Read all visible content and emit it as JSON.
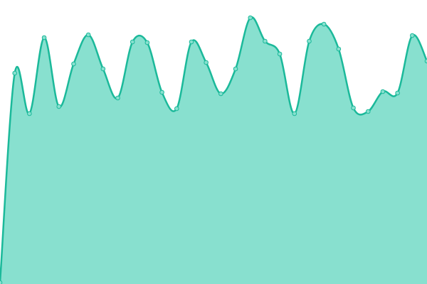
{
  "chart_data": {
    "type": "area",
    "x": [
      0,
      1,
      2,
      3,
      4,
      5,
      6,
      7,
      8,
      9,
      10,
      11,
      12,
      13,
      14,
      15,
      16,
      17,
      18,
      19,
      20,
      21,
      22,
      23,
      24,
      25,
      26,
      27,
      28,
      29
    ],
    "series": [
      {
        "color": "#1bb99a",
        "fill": "#88e0cf",
        "values": [
          2,
          297,
          240,
          347,
          250,
          310,
          351,
          303,
          262,
          341,
          340,
          270,
          247,
          341,
          312,
          268,
          303,
          375,
          342,
          324,
          240,
          342,
          366,
          331,
          248,
          243,
          271,
          269,
          350,
          314
        ]
      }
    ],
    "xlim": [
      0,
      29
    ],
    "ylim": [
      0,
      400
    ],
    "smooth": true,
    "markers": true
  }
}
